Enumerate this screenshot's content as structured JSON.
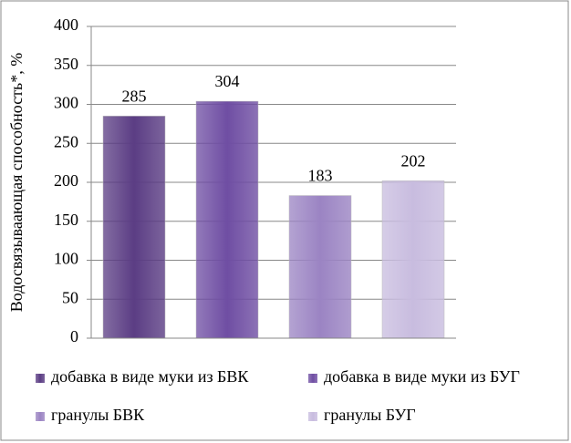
{
  "chart_data": {
    "type": "bar",
    "y_label": "Водосвязываающая способность*, %",
    "categories": [
      null
    ],
    "series": [
      {
        "name": "добавка в виде муки из БВК",
        "color": "#5b3d84",
        "values": [
          285
        ]
      },
      {
        "name": "добавка в виде муки из БУГ",
        "color": "#6f4ea3",
        "values": [
          304
        ]
      },
      {
        "name": "гранулы БВК",
        "color": "#9b84c3",
        "values": [
          183
        ]
      },
      {
        "name": "гранулы БУГ",
        "color": "#c8bcdf",
        "values": [
          202
        ]
      }
    ],
    "ylim": [
      0,
      400
    ],
    "yticks": [
      0,
      50,
      100,
      150,
      200,
      250,
      300,
      350,
      400
    ],
    "grid": true,
    "legend": "bottom"
  }
}
